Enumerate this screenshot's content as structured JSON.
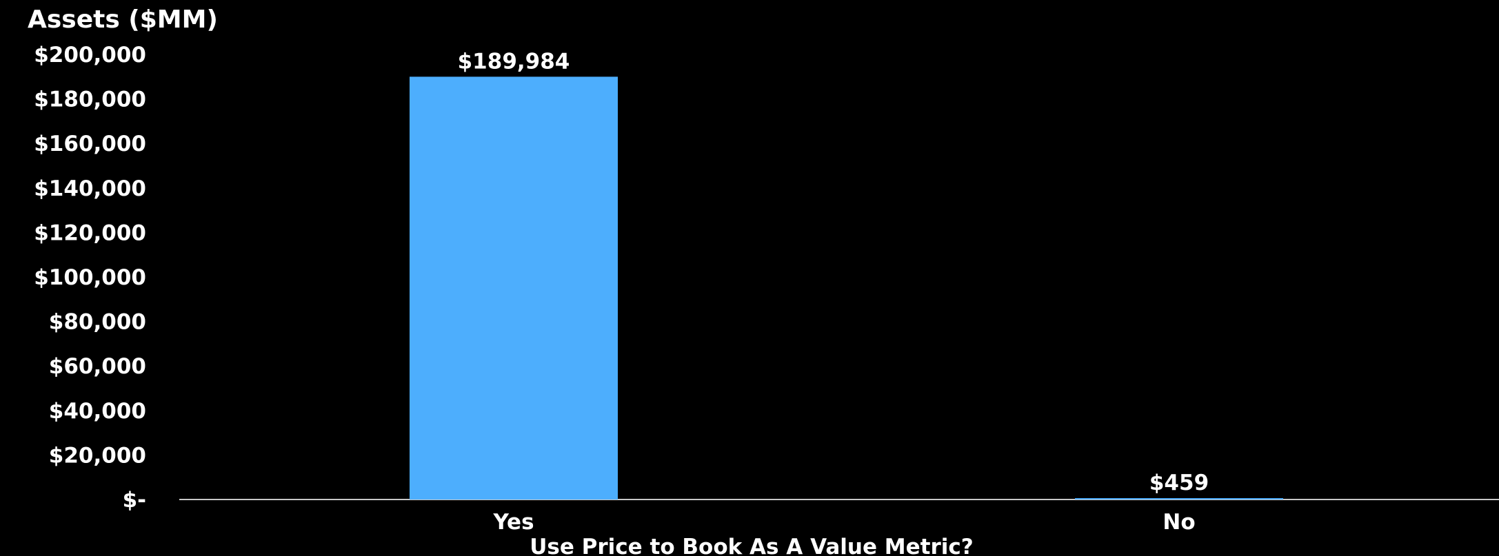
{
  "chart_data": {
    "type": "bar",
    "ylabel": "Assets ($MM)",
    "xlabel": "Use Price to Book As A Value Metric?",
    "categories": [
      "Yes",
      "No"
    ],
    "values": [
      189984,
      459
    ],
    "value_labels": [
      "$189,984",
      "$459"
    ],
    "ylim": [
      0,
      200000
    ],
    "yticks": [
      0,
      20000,
      40000,
      60000,
      80000,
      100000,
      120000,
      140000,
      160000,
      180000,
      200000
    ],
    "ytick_labels": [
      "$-",
      "$20,000",
      "$40,000",
      "$60,000",
      "$80,000",
      "$100,000",
      "$120,000",
      "$140,000",
      "$160,000",
      "$180,000",
      "$200,000"
    ],
    "grid": false,
    "legend": "none",
    "colors": {
      "background": "#000000",
      "bar": "#4daefd",
      "axis": "#c8c8c8",
      "text": "#ffffff"
    }
  }
}
